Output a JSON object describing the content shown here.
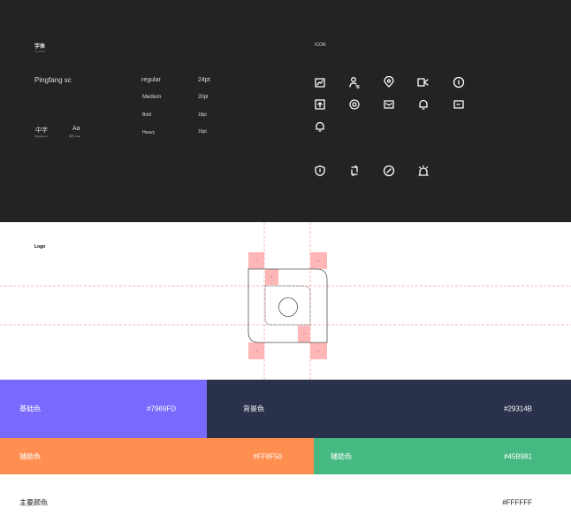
{
  "typeface": {
    "title": "字体",
    "subtitle": "Typeface",
    "font_name": "Pingfang sc",
    "weights": [
      {
        "name": "regular",
        "size": "24pt"
      },
      {
        "name": "Medium",
        "size": "20pt"
      },
      {
        "name": "Bold",
        "size": "18pt"
      },
      {
        "name": "Heavy",
        "size": "16pt"
      }
    ],
    "sample_cn": "中字",
    "sample_cn_label": "Pingfang sc",
    "sample_en": "Aa",
    "sample_en_label": "苹方 Arial"
  },
  "icons": {
    "title": "ICON",
    "items": [
      "chart-icon",
      "user-icon",
      "location-icon",
      "video-share-icon",
      "pin-circle-icon",
      "upload-icon",
      "gear-icon",
      "mail-icon",
      "bell-icon",
      "message-icon",
      "bell-icon",
      "shield-alert-icon",
      "refresh-icon",
      "disabled-icon",
      "alarm-icon"
    ]
  },
  "logo": {
    "title": "Logo",
    "x_label": "X",
    "y_label": "Y"
  },
  "colors": {
    "base": {
      "label": "基础色",
      "hex": "#7969FD"
    },
    "background": {
      "label": "背景色",
      "hex": "#29314B"
    },
    "aux1": {
      "label": "辅助色",
      "hex": "#FF8F50"
    },
    "aux2": {
      "label": "辅助色",
      "hex": "#45B981"
    },
    "main": {
      "label": "主要颜色",
      "hex": "#FFFFFF"
    }
  }
}
